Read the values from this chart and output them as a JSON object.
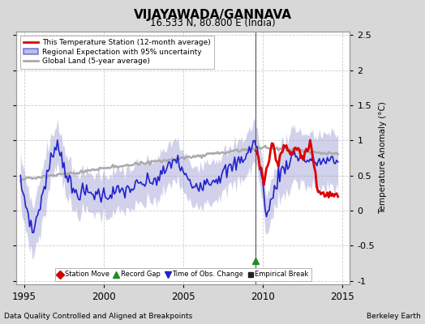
{
  "title": "VIJAYAWADA/GANNAVA",
  "subtitle": "16.533 N, 80.800 E (India)",
  "ylabel": "Temperature Anomaly (°C)",
  "xlabel_left": "Data Quality Controlled and Aligned at Breakpoints",
  "xlabel_right": "Berkeley Earth",
  "ylim": [
    -1.05,
    2.55
  ],
  "xlim": [
    1994.5,
    2015.5
  ],
  "yticks": [
    -1,
    -0.5,
    0,
    0.5,
    1,
    1.5,
    2,
    2.5
  ],
  "xticks": [
    1995,
    2000,
    2005,
    2010,
    2015
  ],
  "fig_bg_color": "#d8d8d8",
  "plot_bg_color": "#ffffff",
  "vertical_line_x": 2009.58,
  "marker_gap_x": 2009.58,
  "marker_gap_y": -0.72,
  "legend_items": [
    {
      "label": "This Temperature Station (12-month average)",
      "color": "#dd0000",
      "lw": 2.0
    },
    {
      "label": "Regional Expectation with 95% uncertainty",
      "color": "#2222cc",
      "lw": 1.5
    },
    {
      "label": "Global Land (5-year average)",
      "color": "#aaaaaa",
      "lw": 2.0
    }
  ],
  "bottom_legend": [
    {
      "label": "Station Move",
      "color": "#cc0000",
      "marker": "D"
    },
    {
      "label": "Record Gap",
      "color": "#228b22",
      "marker": "^"
    },
    {
      "label": "Time of Obs. Change",
      "color": "#2222cc",
      "marker": "v"
    },
    {
      "label": "Empirical Break",
      "color": "#222222",
      "marker": "s"
    }
  ]
}
